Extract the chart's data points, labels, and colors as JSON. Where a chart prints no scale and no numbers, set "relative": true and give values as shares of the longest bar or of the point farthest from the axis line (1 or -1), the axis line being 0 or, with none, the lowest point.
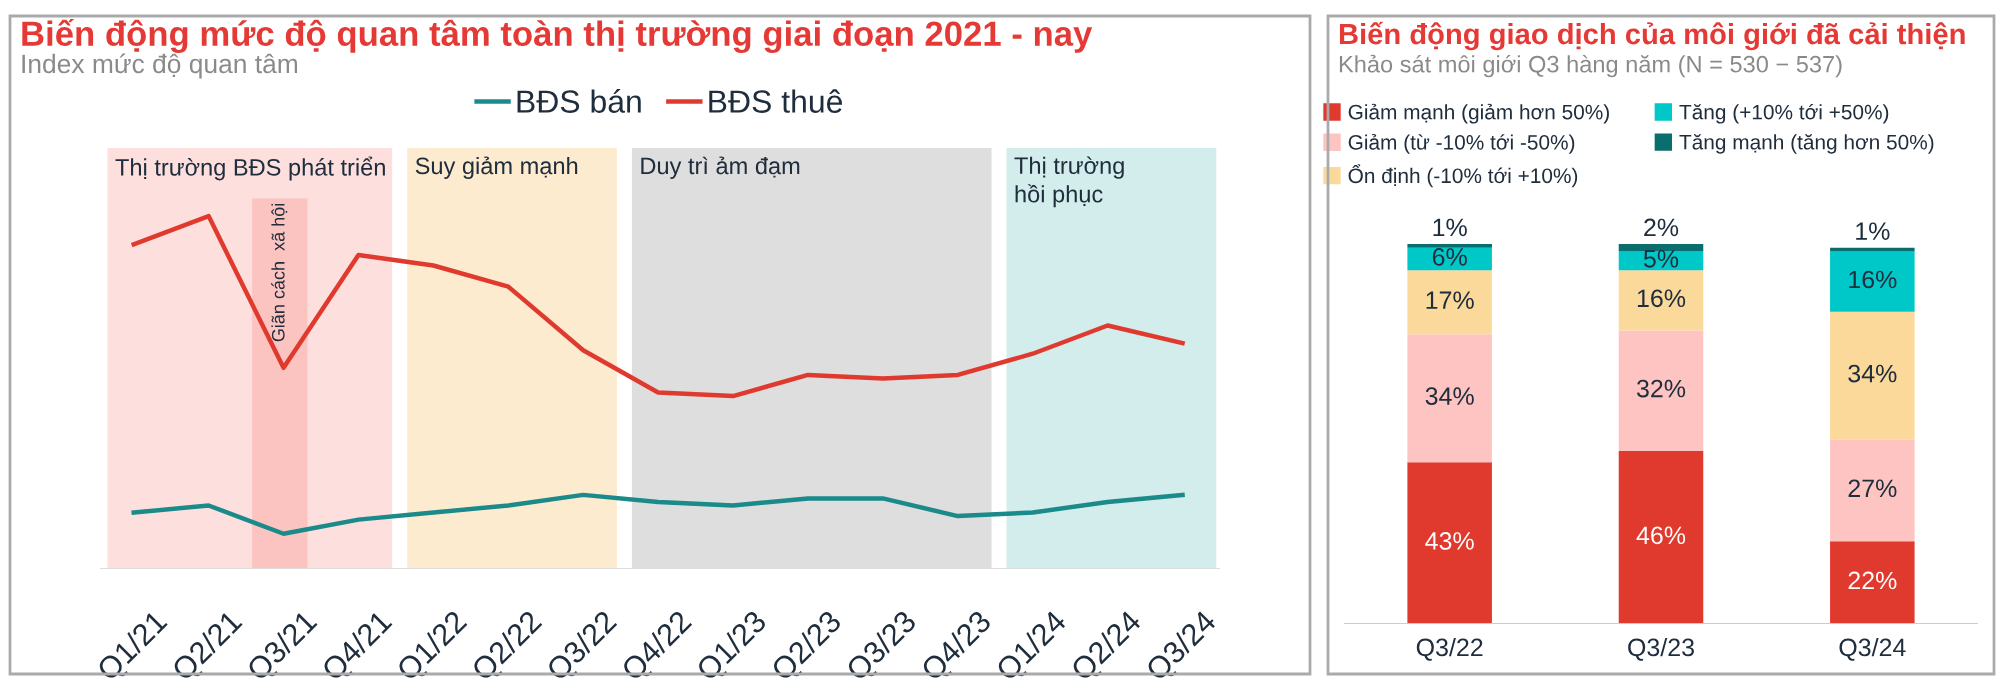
{
  "chart_data": [
    {
      "type": "line",
      "title": "Biến động mức độ quan tâm toàn thị trường giai đoạn 2021 - nay",
      "subtitle": "Index mức độ quan tâm",
      "relative": true,
      "legend": "top",
      "tick_labels": "x",
      "categories": [
        "Q1/21",
        "Q2/21",
        "Q3/21",
        "Q4/21",
        "Q1/22",
        "Q2/22",
        "Q3/22",
        "Q4/22",
        "Q1/23",
        "Q2/23",
        "Q3/23",
        "Q4/23",
        "Q1/24",
        "Q2/24",
        "Q3/24"
      ],
      "series": [
        {
          "name": "BĐS bán",
          "color": "#1a8a8a",
          "values": [
            0.16,
            0.18,
            0.1,
            0.14,
            0.16,
            0.18,
            0.21,
            0.19,
            0.18,
            0.2,
            0.2,
            0.15,
            0.16,
            0.19,
            0.21
          ]
        },
        {
          "name": "BĐS thuê",
          "color": "#e03a2f",
          "values": [
            0.92,
            1.0,
            0.57,
            0.89,
            0.86,
            0.8,
            0.62,
            0.5,
            0.49,
            0.55,
            0.54,
            0.55,
            0.61,
            0.69,
            0.64
          ]
        }
      ],
      "bands": [
        {
          "axis": "x",
          "from": "Q1/21",
          "to": "Q4/21",
          "label": "Thị trường BĐS phát triển",
          "color": "#fde0de"
        },
        {
          "axis": "x",
          "from": "Q1/22",
          "to": "Q3/22",
          "label": "Suy giảm mạnh",
          "color": "#fdebd0"
        },
        {
          "axis": "x",
          "from": "Q4/22",
          "to": "Q4/23",
          "label": "Duy trì ảm đạm",
          "color": "#dedede"
        },
        {
          "axis": "x",
          "from": "Q1/24",
          "to": "Q3/24",
          "label": "Thị trường\nhồi phục",
          "color": "#d3ecec"
        },
        {
          "axis": "x",
          "from": "Q3/21",
          "to": "Q3/21",
          "label": "Giãn cách  xã hội",
          "color": "#fcc4c1"
        }
      ]
    },
    {
      "type": "bar",
      "stacked": true,
      "title": "Biến động giao dịch của môi giới đã cải thiện",
      "subtitle": "Khảo sát môi giới Q3 hàng năm (N = 530 − 537)",
      "legend": "top",
      "tick_labels": "x",
      "data_labels": true,
      "categories": [
        "Q3/22",
        "Q3/23",
        "Q3/24"
      ],
      "series": [
        {
          "name": "Giảm mạnh (giảm hơn 50%)",
          "color": "#e03a2f",
          "values": [
            43,
            46,
            22
          ],
          "value_labels": [
            "43%",
            "46%",
            "22%"
          ]
        },
        {
          "name": "Giảm (từ -10% tới -50%)",
          "color": "#fdc4c1",
          "values": [
            34,
            32,
            27
          ],
          "value_labels": [
            "34%",
            "32%",
            "27%"
          ]
        },
        {
          "name": "Ổn định (-10% tới +10%)",
          "color": "#fbd99a",
          "values": [
            17,
            16,
            34
          ],
          "value_labels": [
            "17%",
            "16%",
            "34%"
          ]
        },
        {
          "name": "Tăng (+10% tới +50%)",
          "color": "#00c8c8",
          "values": [
            6,
            5,
            16
          ],
          "value_labels": [
            "6%",
            "5%",
            "16%"
          ]
        },
        {
          "name": "Tăng mạnh (tăng hơn 50%)",
          "color": "#0b6e6e",
          "values": [
            1,
            2,
            1
          ],
          "value_labels": [
            "1%",
            "2%",
            "1%"
          ]
        }
      ]
    }
  ]
}
